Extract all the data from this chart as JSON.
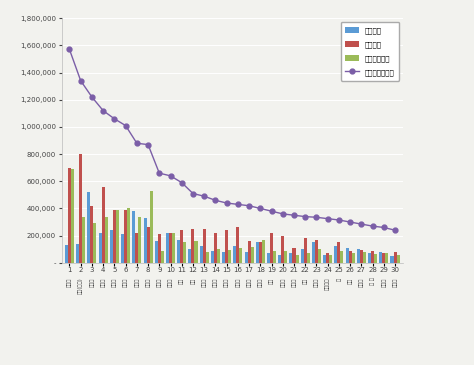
{
  "categories": [
    "기태영",
    "태양(빅뱅)",
    "이동욱",
    "손흥민",
    "이민호",
    "대니구",
    "이동욱",
    "서강준",
    "겓세븐",
    "겓세븐",
    "지코",
    "지코",
    "이종석",
    "조인성",
    "정해인",
    "장기용",
    "박서준",
    "박서준",
    "현빈",
    "이제훈",
    "이승기",
    "수지",
    "신민아",
    "대에스누",
    "우",
    "승우",
    "기계뢡",
    "이 스",
    "안세형",
    "이민호"
  ],
  "rank_labels": [
    "1",
    "2",
    "3",
    "4",
    "5",
    "6",
    "7",
    "8",
    "9",
    "10",
    "11",
    "12",
    "13",
    "14",
    "15",
    "16",
    "17",
    "18",
    "19",
    "20",
    "21",
    "22",
    "23",
    "24",
    "25",
    "26",
    "27",
    "28",
    "29",
    "30"
  ],
  "participation": [
    130000,
    140000,
    520000,
    220000,
    240000,
    210000,
    380000,
    330000,
    160000,
    220000,
    170000,
    100000,
    120000,
    90000,
    80000,
    120000,
    80000,
    150000,
    70000,
    60000,
    75000,
    100000,
    150000,
    55000,
    120000,
    110000,
    100000,
    70000,
    80000,
    50000
  ],
  "communication": [
    700000,
    800000,
    420000,
    560000,
    390000,
    390000,
    220000,
    260000,
    210000,
    220000,
    240000,
    250000,
    250000,
    220000,
    240000,
    260000,
    160000,
    150000,
    220000,
    200000,
    110000,
    180000,
    170000,
    70000,
    150000,
    90000,
    95000,
    85000,
    75000,
    80000
  ],
  "community": [
    690000,
    340000,
    290000,
    340000,
    390000,
    400000,
    335000,
    530000,
    90000,
    220000,
    150000,
    160000,
    80000,
    100000,
    95000,
    110000,
    115000,
    170000,
    90000,
    90000,
    60000,
    70000,
    100000,
    60000,
    90000,
    75000,
    80000,
    65000,
    75000,
    55000
  ],
  "brand_reputation": [
    1570000,
    1340000,
    1220000,
    1120000,
    1060000,
    1010000,
    880000,
    870000,
    660000,
    640000,
    590000,
    510000,
    490000,
    460000,
    440000,
    430000,
    420000,
    400000,
    380000,
    360000,
    350000,
    340000,
    335000,
    325000,
    315000,
    300000,
    285000,
    270000,
    260000,
    240000
  ],
  "bar_participation_color": "#5B9BD5",
  "bar_communication_color": "#C0504D",
  "bar_community_color": "#9BBB59",
  "line_color": "#7B5EA7",
  "background_color": "#F2F2EE",
  "ylim": [
    0,
    1800000
  ],
  "yticks": [
    0,
    200000,
    400000,
    600000,
    800000,
    1000000,
    1200000,
    1400000,
    1600000,
    1800000
  ],
  "legend_labels": [
    "참여지수",
    "소통지수",
    "커뮤니티지수",
    "브랜드평판지수"
  ]
}
